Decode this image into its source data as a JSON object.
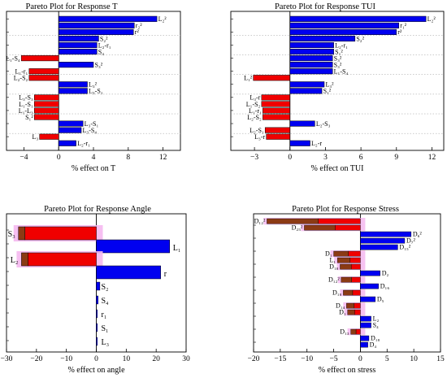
{
  "chart_data": [
    {
      "type": "bar",
      "orientation": "horizontal",
      "title": "Pareto Plot for Response T",
      "xlabel": "% effect on T",
      "xlim": [
        -6,
        14
      ],
      "xticks": [
        -4,
        0,
        4,
        8,
        12
      ],
      "grid": "dotted horizontal lines",
      "bars": [
        {
          "label": "L₂²",
          "value": 11.3
        },
        {
          "label": "r₂²",
          "value": 8.7
        },
        {
          "label": "r²",
          "value": 8.6
        },
        {
          "label": "S₂²",
          "value": 4.6
        },
        {
          "label": "L₂-r₁",
          "value": 4.4
        },
        {
          "label": "S₄",
          "value": 4.4
        },
        {
          "label": "L₁-S₄",
          "value": -4.3
        },
        {
          "label": "S₃²",
          "value": 4.0
        },
        {
          "label": "L₁-r₁",
          "value": -3.4
        },
        {
          "label": "L₂-S₂",
          "value": -3.4
        },
        {
          "label": "L₃²",
          "value": 3.3
        },
        {
          "label": "L₃-S₁",
          "value": 3.3
        },
        {
          "label": "L₃-S₃",
          "value": -2.8
        },
        {
          "label": "L₁-S₁",
          "value": -2.8
        },
        {
          "label": "L₁-L₃",
          "value": -2.8
        },
        {
          "label": "S₁²",
          "value": -2.8
        },
        {
          "label": "L₃-S₁",
          "value": 2.8
        },
        {
          "label": "L₃-S₄",
          "value": 2.6
        },
        {
          "label": "L₃",
          "value": -2.2
        },
        {
          "label": "L₂-r₁",
          "value": 2.0
        }
      ]
    },
    {
      "type": "bar",
      "orientation": "horizontal",
      "title": "Pareto Plot for Response TUI",
      "xlabel": "% effect on TUI",
      "xlim": [
        -5,
        13
      ],
      "xticks": [
        -3,
        0,
        3,
        6,
        9,
        12
      ],
      "grid": "dotted horizontal lines",
      "bars": [
        {
          "label": "L₂²",
          "value": 11.5
        },
        {
          "label": "r₁²",
          "value": 9.2
        },
        {
          "label": "r²",
          "value": 9.0
        },
        {
          "label": "S₂²",
          "value": 5.5
        },
        {
          "label": "L₂-r₁",
          "value": 3.7
        },
        {
          "label": "S₁²",
          "value": 3.7
        },
        {
          "label": "S₃²",
          "value": 3.6
        },
        {
          "label": "S₃²",
          "value": 3.6
        },
        {
          "label": "L₁-S₄",
          "value": 3.6
        },
        {
          "label": "L₁²",
          "value": -3.1
        },
        {
          "label": "L₃²",
          "value": 2.9
        },
        {
          "label": "S₁²",
          "value": 2.7
        },
        {
          "label": "L₃-r",
          "value": -2.4
        },
        {
          "label": "L₁-S₂",
          "value": -2.4
        },
        {
          "label": "L₁-r₁",
          "value": -2.3
        },
        {
          "label": "L₂-S₂",
          "value": -2.3
        },
        {
          "label": "L₂-S₃",
          "value": 2.1
        },
        {
          "label": "L₂-S₁",
          "value": -2.1
        },
        {
          "label": "L₃-r",
          "value": -2.0
        },
        {
          "label": "L₂-r",
          "value": 1.7
        }
      ]
    },
    {
      "type": "bar",
      "orientation": "horizontal",
      "title": "Pareto Plot for Response Angle",
      "xlabel": "% effect on angle",
      "xlim": [
        -30,
        30
      ],
      "xticks": [
        -30,
        -20,
        -10,
        0,
        10,
        20,
        30
      ],
      "bars": [
        {
          "label": "S₃",
          "value": -26
        },
        {
          "label": "L₁",
          "value": 24.5
        },
        {
          "label": "L₂",
          "value": -25
        },
        {
          "label": "r",
          "value": 21.5
        },
        {
          "label": "S₂",
          "value": 1.2
        },
        {
          "label": "S₄",
          "value": 0.6
        },
        {
          "label": "r₁",
          "value": 0.3
        },
        {
          "label": "S₁",
          "value": 0.2
        },
        {
          "label": "L₃",
          "value": 0.1
        }
      ]
    },
    {
      "type": "bar",
      "orientation": "horizontal",
      "title": "Pareto Plot for Response Stress",
      "xlabel": "% effect on stress",
      "xlim": [
        -20,
        15
      ],
      "xticks": [
        -20,
        -15,
        -10,
        -5,
        0,
        5,
        10,
        15
      ],
      "bars": [
        {
          "label": "D₁₂²",
          "value": -17.5
        },
        {
          "label": "D₂₅²",
          "value": -10.5
        },
        {
          "label": "D₆²",
          "value": 9.5
        },
        {
          "label": "D₇²",
          "value": 8.3
        },
        {
          "label": "D₁₅²",
          "value": 7.0
        },
        {
          "label": "D₁",
          "value": -5.0
        },
        {
          "label": "L₁",
          "value": -4.3
        },
        {
          "label": "D₁₀",
          "value": -3.8
        },
        {
          "label": "D₂",
          "value": 3.7
        },
        {
          "label": "D₁₂²",
          "value": -3.6
        },
        {
          "label": "D₁₆",
          "value": 3.4
        },
        {
          "label": "D₁₀",
          "value": -3.2
        },
        {
          "label": "D₅",
          "value": 2.8
        },
        {
          "label": "D₁₄",
          "value": -2.6
        },
        {
          "label": "D₁",
          "value": -2.4
        },
        {
          "label": "L₂",
          "value": 2.0
        },
        {
          "label": "S₄",
          "value": 2.0
        },
        {
          "label": "D₁₃",
          "value": -1.8
        },
        {
          "label": "D₁₈",
          "value": 1.6
        },
        {
          "label": "D₄",
          "value": 1.4
        }
      ]
    }
  ]
}
